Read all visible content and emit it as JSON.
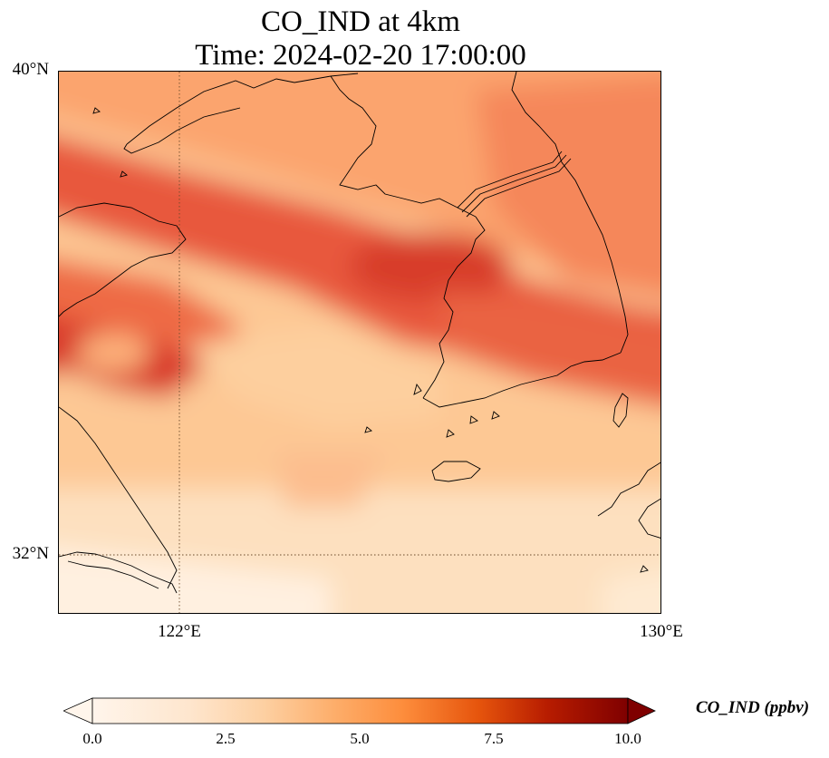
{
  "title": {
    "line1": "CO_IND at 4km",
    "line2": "Time: 2024-02-20 17:00:00"
  },
  "axes": {
    "lat_labels": [
      "40°N",
      "32°N"
    ],
    "lon_labels": [
      "122°E",
      "130°E"
    ]
  },
  "colorbar": {
    "label": "CO_IND (ppbv)",
    "ticks": [
      "0.0",
      "2.5",
      "5.0",
      "7.5",
      "10.0"
    ],
    "range": [
      0,
      10
    ],
    "colormap": [
      "#fff5eb",
      "#fdd0a2",
      "#fdae6b",
      "#fd8d3c",
      "#e6550d",
      "#a63603",
      "#7f0000"
    ]
  },
  "map": {
    "extent": {
      "lon": [
        120,
        130
      ],
      "lat": [
        31,
        40
      ]
    },
    "gridlines": {
      "lon": 122,
      "lat": 32,
      "style": "dotted"
    },
    "field": "CO_IND concentration, high band (~6 ppbv) along Shandong–Korea corridor"
  }
}
